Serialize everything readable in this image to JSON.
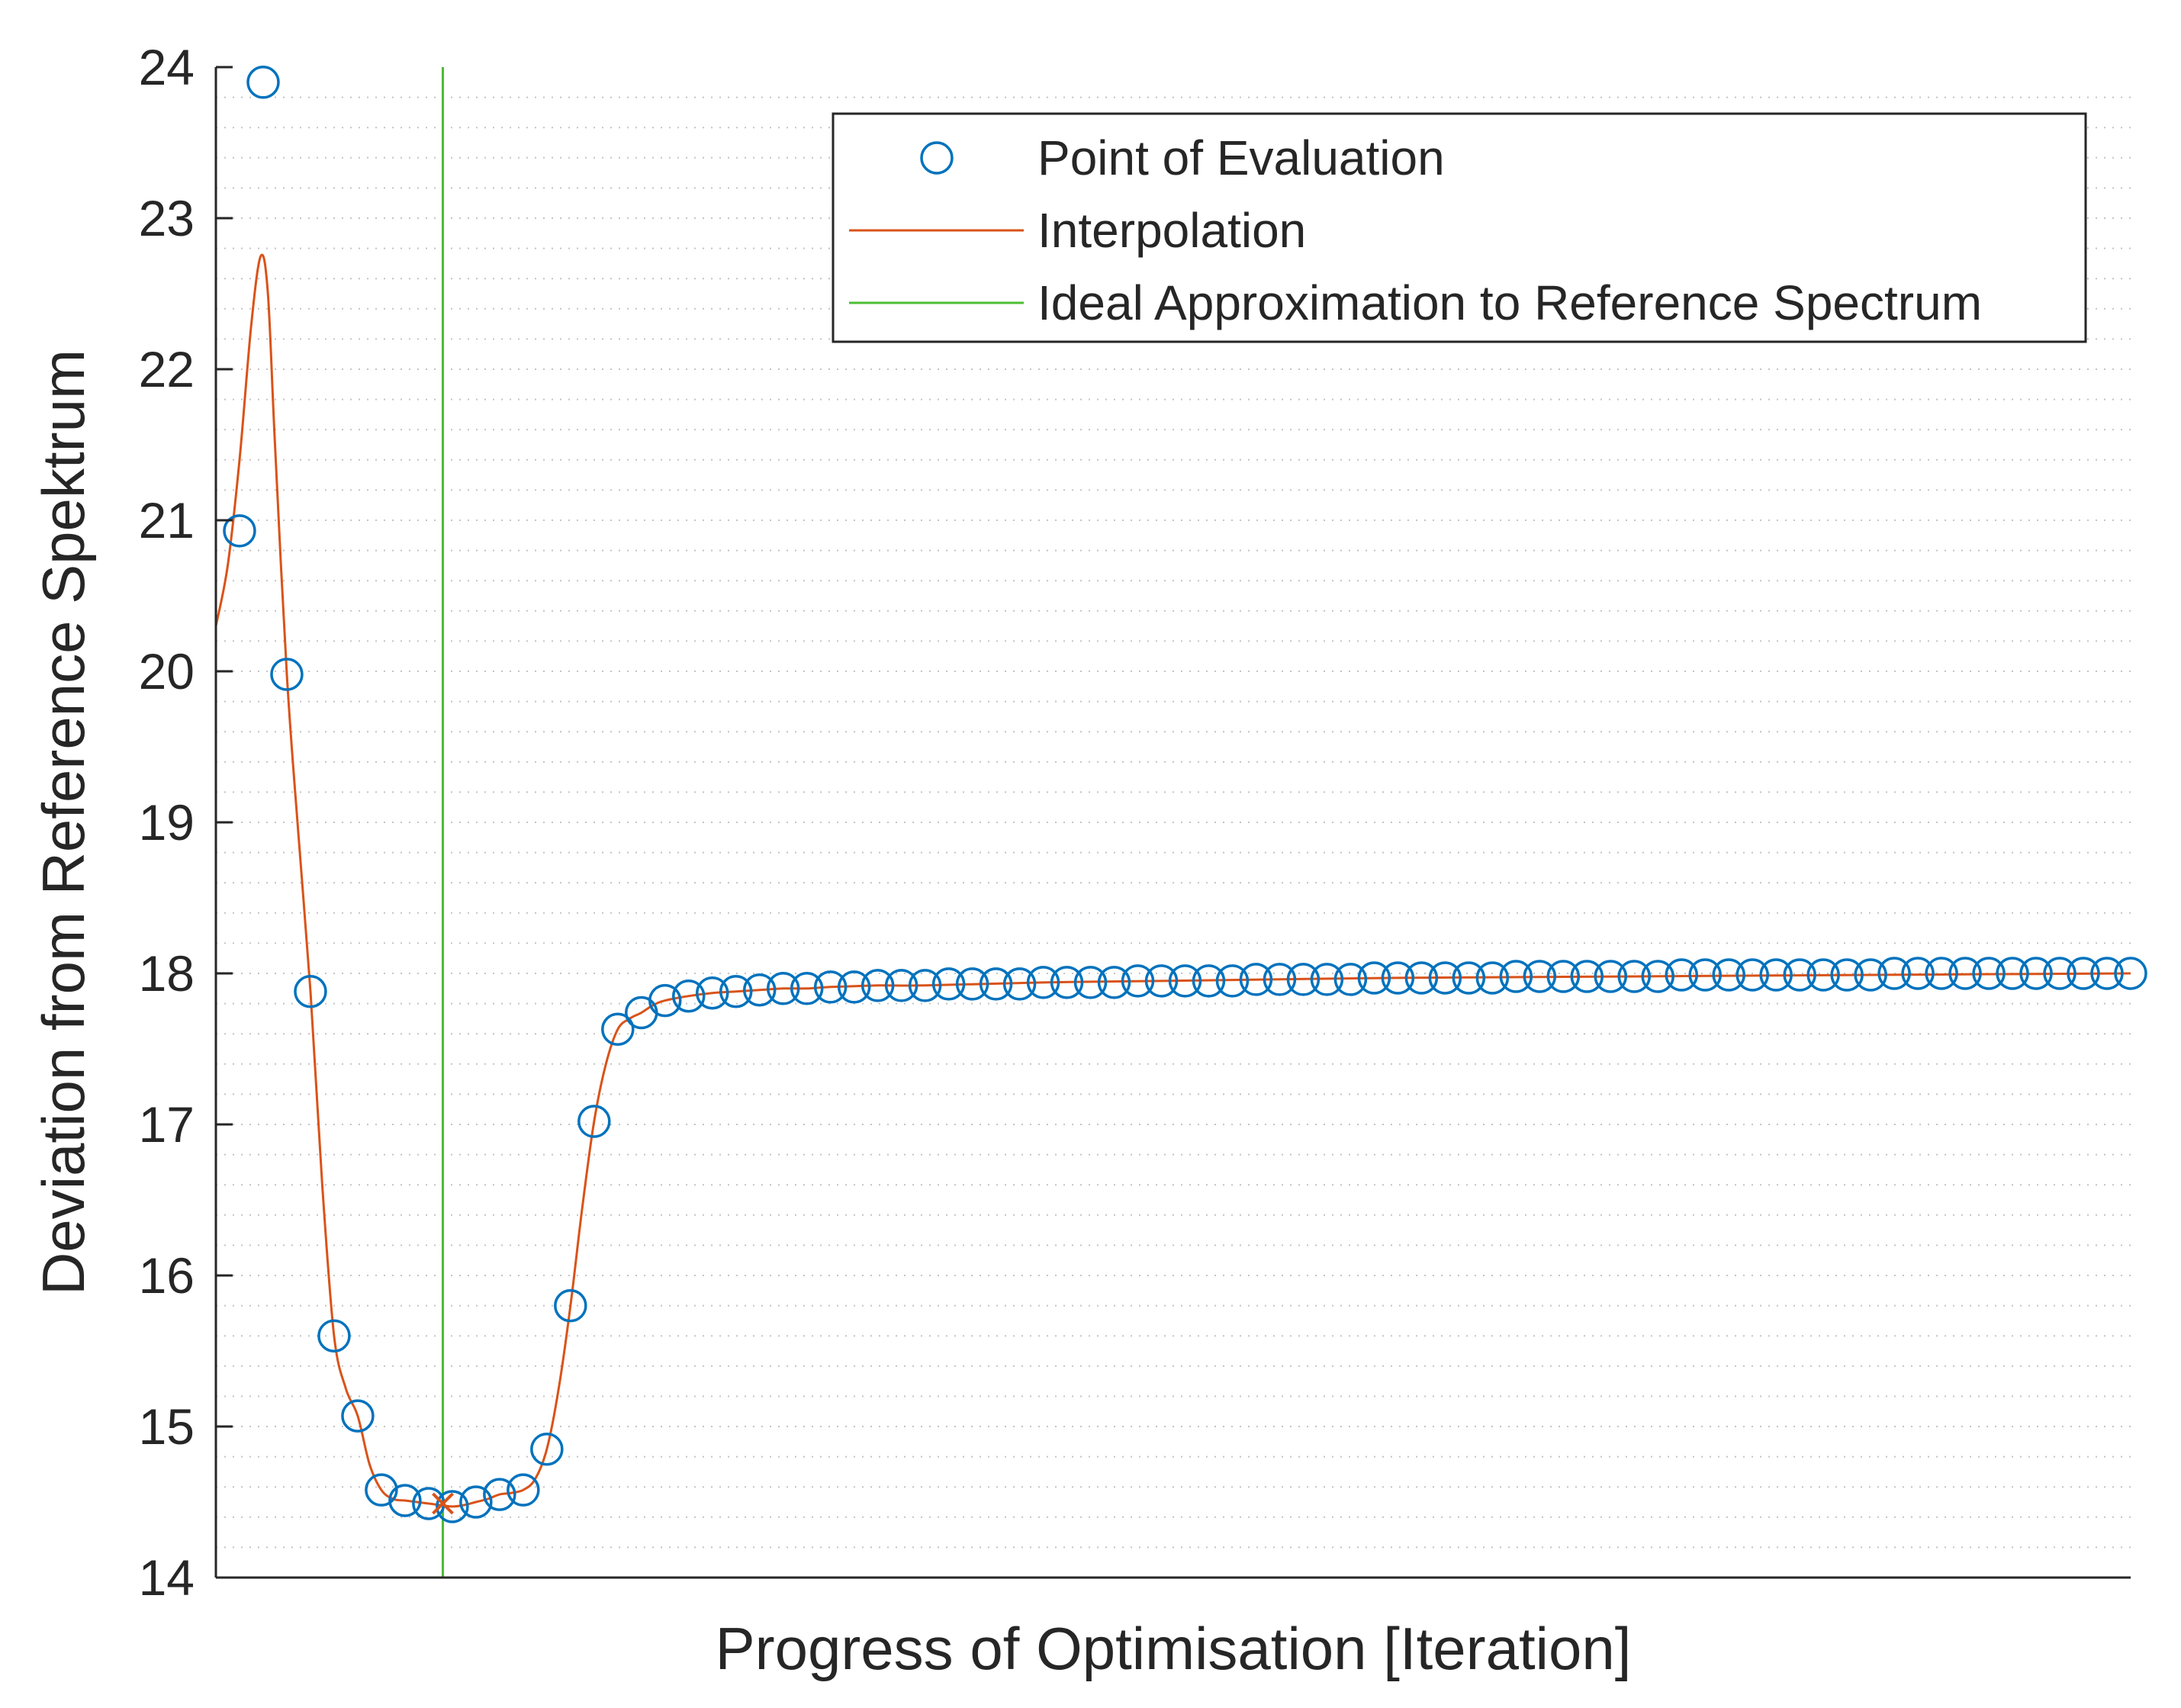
{
  "chart_data": {
    "type": "line",
    "title": "",
    "xlabel": "Progress of Optimisation [Iteration]",
    "ylabel": "Deviation from Reference Spektrum",
    "xlim": [
      0,
      81
    ],
    "ylim": [
      14,
      24
    ],
    "yticks": [
      "14",
      "15",
      "16",
      "17",
      "18",
      "19",
      "20",
      "21",
      "22",
      "23",
      "24"
    ],
    "x_tick_labels_shown": false,
    "grid": "horizontal minor dotted",
    "legend_position": "top-right",
    "series": [
      {
        "name": "Point of Evaluation",
        "kind": "markers",
        "marker": "circle",
        "color": "#0072BD",
        "x": [
          1,
          2,
          3,
          4,
          5,
          6,
          7,
          8,
          9,
          10,
          11,
          12,
          13,
          14,
          15,
          16,
          17,
          18,
          19,
          20,
          21,
          22,
          23,
          24,
          25,
          26,
          27,
          28,
          29,
          30,
          31,
          32,
          33,
          34,
          35,
          36,
          37,
          38,
          39,
          40,
          41,
          42,
          43,
          44,
          45,
          46,
          47,
          48,
          49,
          50,
          51,
          52,
          53,
          54,
          55,
          56,
          57,
          58,
          59,
          60,
          61,
          62,
          63,
          64,
          65,
          66,
          67,
          68,
          69,
          70,
          71,
          72,
          73,
          74,
          75,
          76,
          77,
          78,
          79,
          80,
          81
        ],
        "values": [
          20.93,
          23.9,
          19.98,
          17.88,
          15.6,
          15.07,
          14.58,
          14.51,
          14.49,
          14.47,
          14.5,
          14.55,
          14.58,
          14.85,
          15.8,
          17.02,
          17.63,
          17.74,
          17.82,
          17.85,
          17.87,
          17.88,
          17.89,
          17.9,
          17.9,
          17.91,
          17.91,
          17.92,
          17.92,
          17.92,
          17.93,
          17.93,
          17.93,
          17.93,
          17.94,
          17.94,
          17.94,
          17.94,
          17.95,
          17.95,
          17.95,
          17.95,
          17.95,
          17.96,
          17.96,
          17.96,
          17.96,
          17.96,
          17.97,
          17.97,
          17.97,
          17.97,
          17.97,
          17.97,
          17.98,
          17.98,
          17.98,
          17.98,
          17.98,
          17.98,
          17.98,
          17.99,
          17.99,
          17.99,
          17.99,
          17.99,
          17.99,
          17.99,
          17.99,
          17.99,
          18.0,
          18.0,
          18.0,
          18.0,
          18.0,
          18.0,
          18.0,
          18.0,
          18.0,
          18.0,
          18.0
        ]
      },
      {
        "name": "Interpolation",
        "kind": "line",
        "color": "#D95319",
        "x": [
          0,
          0.5,
          1,
          1.5,
          1.9,
          2.2,
          2.5,
          3,
          3.5,
          4,
          4.5,
          5,
          5.5,
          6,
          6.5,
          7,
          7.5,
          8,
          8.5,
          9,
          9.5,
          10,
          10.5,
          11,
          11.5,
          12,
          12.5,
          13,
          13.5,
          14,
          14.5,
          15,
          15.5,
          16,
          16.5,
          17,
          17.5,
          18,
          18.5,
          19,
          20,
          21,
          22,
          23,
          24,
          25,
          26,
          28,
          30,
          35,
          40,
          50,
          60,
          70,
          81
        ],
        "values": [
          20.3,
          20.7,
          21.4,
          22.3,
          22.75,
          22.5,
          21.5,
          19.98,
          18.9,
          17.88,
          16.6,
          15.6,
          15.25,
          15.07,
          14.75,
          14.58,
          14.52,
          14.51,
          14.5,
          14.49,
          14.48,
          14.47,
          14.48,
          14.5,
          14.52,
          14.55,
          14.56,
          14.58,
          14.65,
          14.85,
          15.25,
          15.8,
          16.45,
          17.02,
          17.4,
          17.63,
          17.7,
          17.74,
          17.79,
          17.82,
          17.85,
          17.87,
          17.88,
          17.89,
          17.9,
          17.9,
          17.91,
          17.92,
          17.92,
          17.94,
          17.95,
          17.97,
          17.98,
          17.99,
          18.0
        ]
      },
      {
        "name": "Ideal Approximation to Reference Spectrum",
        "kind": "vline",
        "color": "#4DBD33",
        "x_value": 9.6
      }
    ],
    "annotations": [
      {
        "type": "cross-marker",
        "x": 9.6,
        "y": 14.49,
        "color": "#D95319"
      }
    ]
  }
}
